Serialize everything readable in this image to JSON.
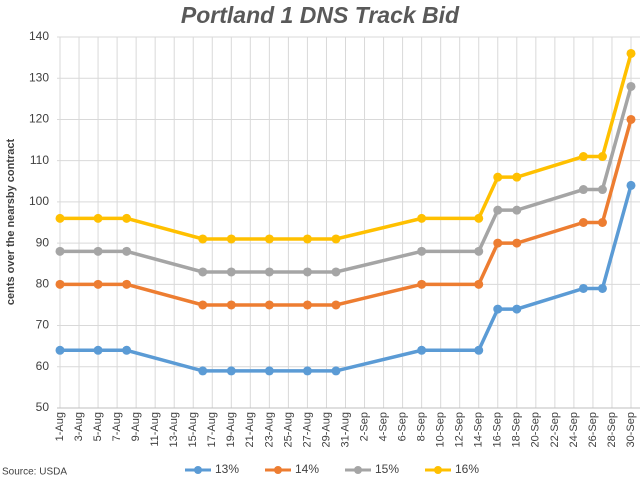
{
  "chart_data": {
    "type": "line",
    "title": "Portland 1 DNS Track Bid",
    "y_label": "cents over the nearsby contract",
    "source": "Source: USDA",
    "x": [
      "1-Aug",
      "5-Aug",
      "8-Aug",
      "16-Aug",
      "19-Aug",
      "23-Aug",
      "27-Aug",
      "30-Aug",
      "8-Sep",
      "14-Sep",
      "16-Sep",
      "18-Sep",
      "25-Sep",
      "27-Sep",
      "30-Sep"
    ],
    "xticks": [
      "1-Aug",
      "3-Aug",
      "5-Aug",
      "7-Aug",
      "9-Aug",
      "11-Aug",
      "13-Aug",
      "15-Aug",
      "17-Aug",
      "19-Aug",
      "21-Aug",
      "23-Aug",
      "25-Aug",
      "27-Aug",
      "29-Aug",
      "31-Aug",
      "2-Sep",
      "4-Sep",
      "6-Sep",
      "8-Sep",
      "10-Sep",
      "12-Sep",
      "14-Sep",
      "16-Sep",
      "18-Sep",
      "20-Sep",
      "22-Sep",
      "24-Sep",
      "26-Sep",
      "28-Sep",
      "30-Sep"
    ],
    "series": [
      {
        "name": "13%",
        "color": "#5b9bd5",
        "values": [
          64,
          64,
          64,
          59,
          59,
          59,
          59,
          59,
          64,
          64,
          74,
          74,
          79,
          79,
          104
        ]
      },
      {
        "name": "14%",
        "color": "#ed7d31",
        "values": [
          80,
          80,
          80,
          75,
          75,
          75,
          75,
          75,
          80,
          80,
          90,
          90,
          95,
          95,
          120
        ]
      },
      {
        "name": "15%",
        "color": "#a5a5a5",
        "values": [
          88,
          88,
          88,
          83,
          83,
          83,
          83,
          83,
          88,
          88,
          98,
          98,
          103,
          103,
          128
        ]
      },
      {
        "name": "16%",
        "color": "#ffc000",
        "values": [
          96,
          96,
          96,
          91,
          91,
          91,
          91,
          91,
          96,
          96,
          106,
          106,
          111,
          111,
          136
        ]
      }
    ],
    "ylim": [
      50,
      140
    ],
    "yticks": [
      50,
      60,
      70,
      80,
      90,
      100,
      110,
      120,
      130,
      140
    ],
    "grid": true
  }
}
